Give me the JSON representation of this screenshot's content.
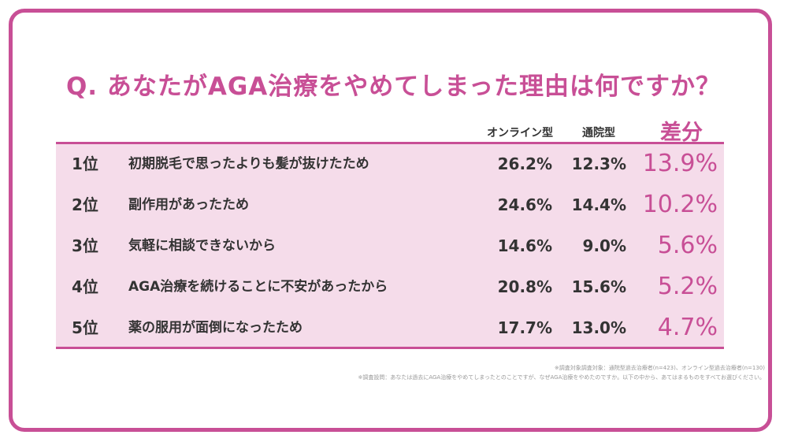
{
  "title": "Q. あなたがAGA治療をやめてしまった理由は何ですか？",
  "headers": {
    "online": "オンライン型",
    "store": "通院型",
    "diff": "差分"
  },
  "chart_data": {
    "type": "table",
    "title": "Q. あなたがAGA治療をやめてしまった理由は何ですか？",
    "columns": [
      "オンライン型",
      "通院型",
      "差分"
    ],
    "rows": [
      {
        "rank": "1位",
        "reason": "初期脱毛で思ったよりも髪が抜けたため",
        "online": "26.2%",
        "store": "12.3%",
        "diff": "13.9%"
      },
      {
        "rank": "2位",
        "reason": "副作用があったため",
        "online": "24.6%",
        "store": "14.4%",
        "diff": "10.2%"
      },
      {
        "rank": "3位",
        "reason": "気軽に相談できないから",
        "online": "14.6%",
        "store": "9.0%",
        "diff": "5.6%"
      },
      {
        "rank": "4位",
        "reason": "AGA治療を続けることに不安があったから",
        "online": "20.8%",
        "store": "15.6%",
        "diff": "5.2%"
      },
      {
        "rank": "5位",
        "reason": "薬の服用が面倒になったため",
        "online": "17.7%",
        "store": "13.0%",
        "diff": "4.7%"
      }
    ]
  },
  "notes": [
    "※調査対象調査対象：通院型過去治療者(n=423)、オンライン型過去治療者(n=130)",
    "※調査設問：あなたは過去にAGA治療をやめてしまったとのことですが、なぜAGA治療をやめたのですか。以下の中から、あてはまるものをすべてお選びください。"
  ],
  "colors": {
    "accent": "#c84f96",
    "table_bg": "#f5dcea"
  }
}
